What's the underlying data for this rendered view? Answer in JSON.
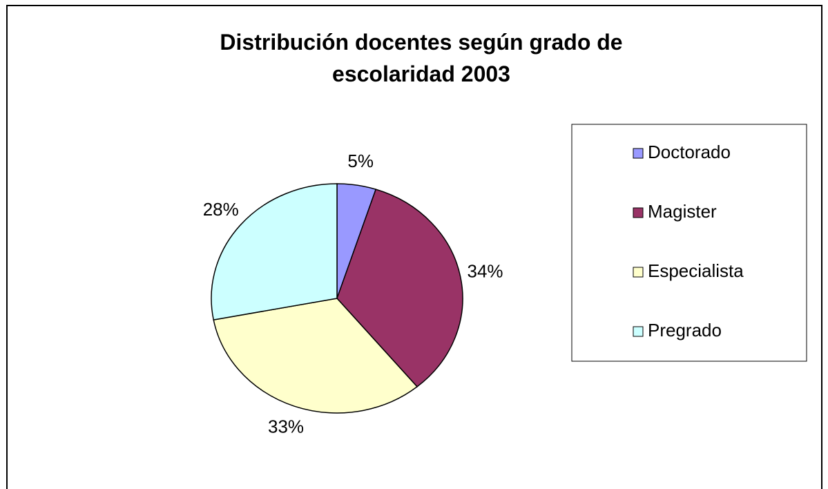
{
  "chart_data": {
    "type": "pie",
    "title": "Distribución docentes según grado de escolaridad 2003",
    "categories": [
      "Doctorado",
      "Magister",
      "Especialista",
      "Pregrado"
    ],
    "values": [
      5,
      34,
      33,
      28
    ],
    "value_labels": [
      "5%",
      "34%",
      "33%",
      "28%"
    ],
    "colors": [
      "#9999ff",
      "#993366",
      "#ffffcc",
      "#ccffff"
    ],
    "legend": "right"
  }
}
